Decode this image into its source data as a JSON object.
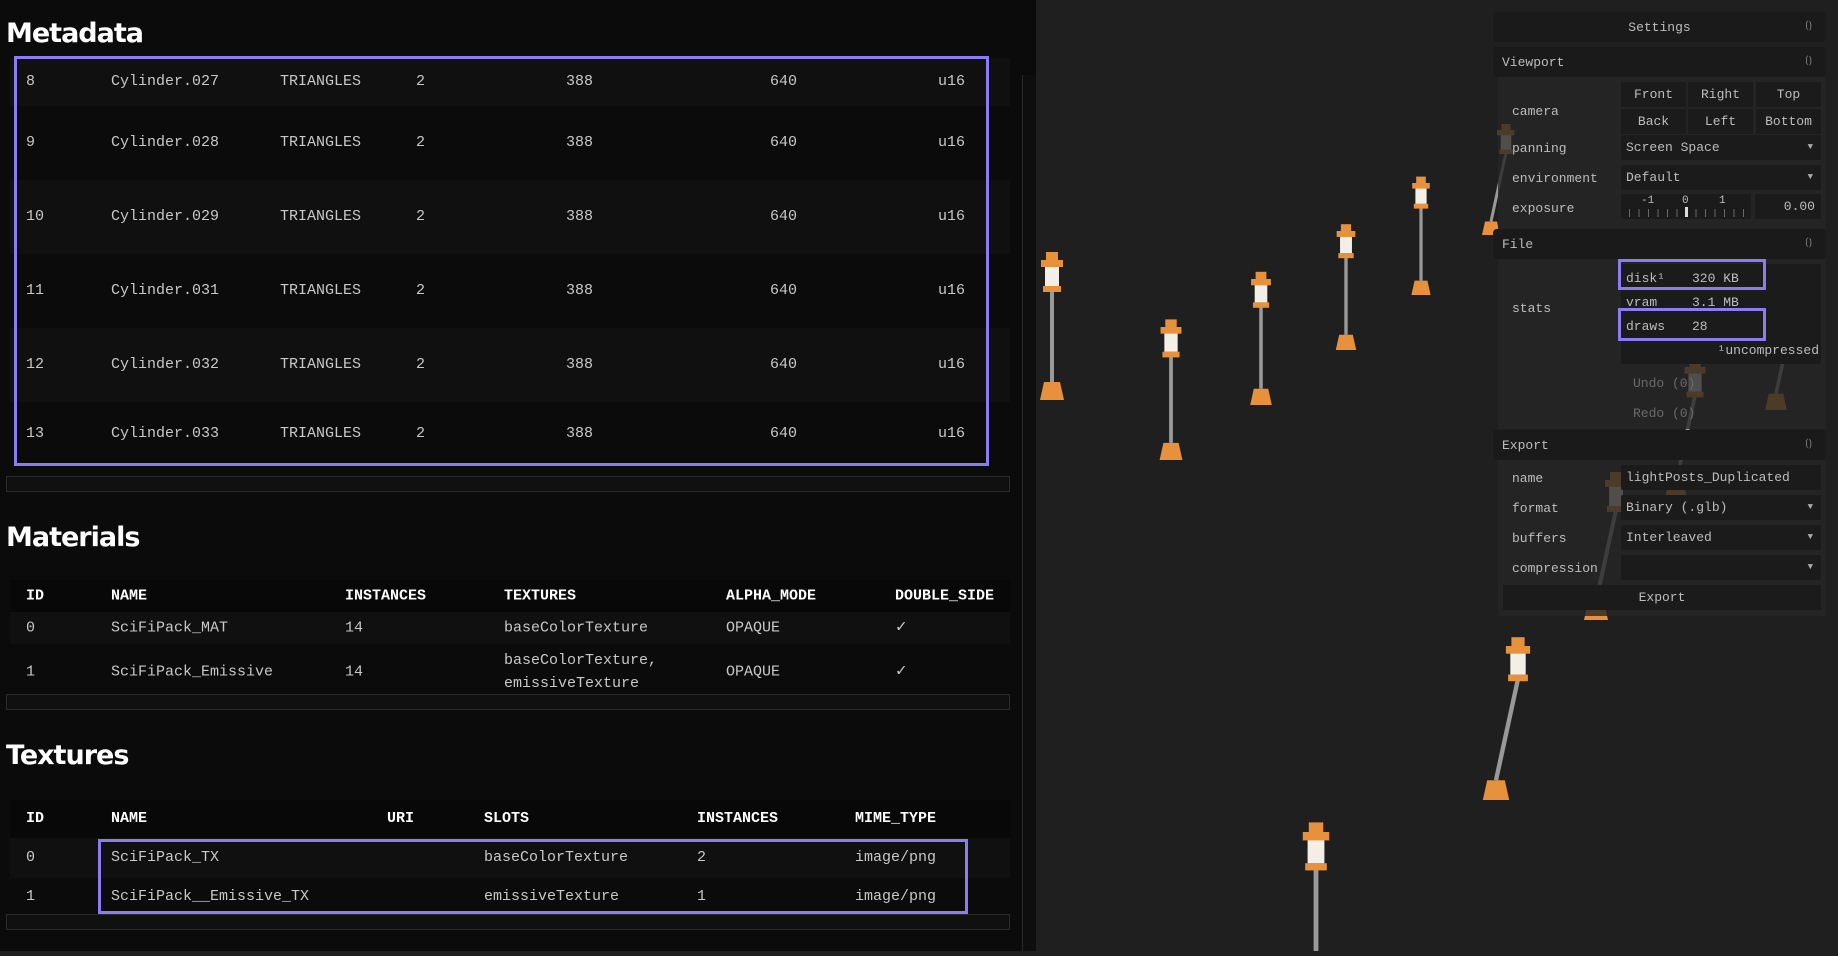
{
  "metadata": {
    "title": "Metadata",
    "rows": [
      [
        "8",
        "Cylinder.027",
        "TRIANGLES",
        "2",
        "388",
        "640",
        "u16"
      ],
      [
        "9",
        "Cylinder.028",
        "TRIANGLES",
        "2",
        "388",
        "640",
        "u16"
      ],
      [
        "10",
        "Cylinder.029",
        "TRIANGLES",
        "2",
        "388",
        "640",
        "u16"
      ],
      [
        "11",
        "Cylinder.031",
        "TRIANGLES",
        "2",
        "388",
        "640",
        "u16"
      ],
      [
        "12",
        "Cylinder.032",
        "TRIANGLES",
        "2",
        "388",
        "640",
        "u16"
      ],
      [
        "13",
        "Cylinder.033",
        "TRIANGLES",
        "2",
        "388",
        "640",
        "u16"
      ]
    ]
  },
  "materials": {
    "title": "Materials",
    "headers": [
      "ID",
      "NAME",
      "INSTANCES",
      "TEXTURES",
      "ALPHA_MODE",
      "DOUBLE_SIDE"
    ],
    "rows": [
      [
        "0",
        "SciFiPack_MAT",
        "14",
        "baseColorTexture",
        "OPAQUE",
        "✓"
      ],
      [
        "1",
        "SciFiPack_Emissive",
        "14",
        "baseColorTexture,\nemissiveTexture",
        "OPAQUE",
        "✓"
      ]
    ]
  },
  "textures": {
    "title": "Textures",
    "headers": [
      "ID",
      "NAME",
      "URI",
      "SLOTS",
      "INSTANCES",
      "MIME_TYPE"
    ],
    "rows": [
      [
        "0",
        "SciFiPack_TX",
        "",
        "baseColorTexture",
        "2",
        "image/png"
      ],
      [
        "1",
        "SciFiPack__Emissive_TX",
        "",
        "emissiveTexture",
        "1",
        "image/png"
      ]
    ]
  },
  "settings": {
    "title": "Settings",
    "viewport": {
      "title": "Viewport",
      "camera_label": "camera",
      "camera_buttons": [
        "Front",
        "Right",
        "Top",
        "Back",
        "Left",
        "Bottom"
      ],
      "panning_label": "panning",
      "panning": "Screen Space",
      "environment_label": "environment",
      "environment": "Default",
      "exposure_label": "exposure",
      "exposure_ticks": [
        "-1",
        "0",
        "1"
      ],
      "exposure": "0.00"
    },
    "file": {
      "title": "File",
      "stats_label": "stats",
      "disk_label": "disk¹",
      "disk": "320 KB",
      "vram_label": "vram",
      "vram": "3.1 MB",
      "draws_label": "draws",
      "draws": "28",
      "note": "¹uncompressed",
      "undo": "Undo (0)",
      "redo": "Redo (0)"
    },
    "export": {
      "title": "Export",
      "name_label": "name",
      "name": "lightPosts_Duplicated",
      "format_label": "format",
      "format": "Binary (.glb)",
      "buffers_label": "buffers",
      "buffers": "Interleaved",
      "compression_label": "compression",
      "compression": "",
      "button": "Export"
    }
  },
  "colors": {
    "highlight": "#8b7cf6",
    "post_orange": "#e8913c"
  }
}
